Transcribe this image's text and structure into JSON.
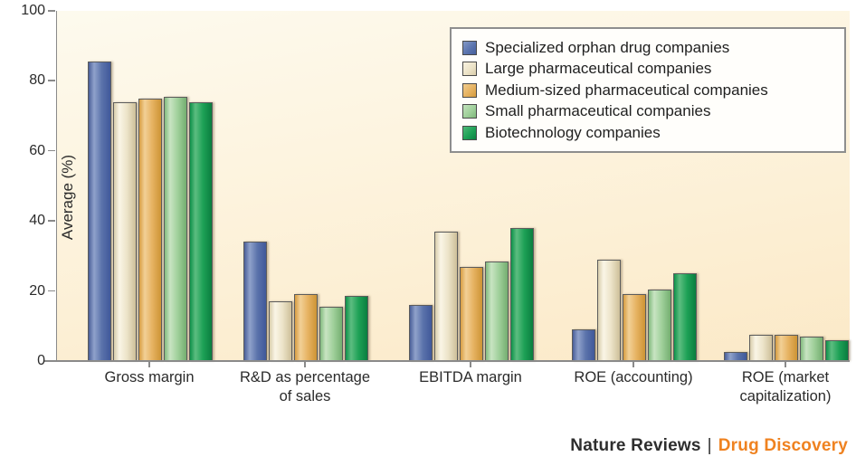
{
  "chart_data": {
    "type": "bar",
    "title": "",
    "ylabel": "Average (%)",
    "xlabel": "",
    "ylim": [
      0,
      100
    ],
    "yticks": [
      0,
      20,
      40,
      60,
      80,
      100
    ],
    "grid": false,
    "legend_position": "top-right",
    "categories": [
      "Gross margin",
      "R&D as percentage\nof sales",
      "EBITDA margin",
      "ROE (accounting)",
      "ROE (market\ncapitalization)"
    ],
    "series": [
      {
        "name": "Specialized orphan drug companies",
        "color": "#5b74ae",
        "values": [
          85.5,
          34,
          16,
          9,
          2.5
        ]
      },
      {
        "name": "Large pharmaceutical companies",
        "color": "#ece3c8",
        "values": [
          74,
          17,
          37,
          29,
          7.5
        ]
      },
      {
        "name": "Medium-sized pharmaceutical companies",
        "color": "#e6b261",
        "values": [
          75,
          19,
          27,
          19,
          7.5
        ]
      },
      {
        "name": "Small pharmaceutical companies",
        "color": "#a0d09b",
        "values": [
          75.5,
          15.5,
          28.5,
          20.5,
          7
        ]
      },
      {
        "name": "Biotechnology companies",
        "color": "#1da156",
        "values": [
          74,
          18.5,
          38,
          25,
          6
        ]
      }
    ]
  },
  "footer": {
    "brand": "Nature Reviews",
    "separator": "|",
    "title": "Drug Discovery",
    "title_color": "#ef8220"
  }
}
